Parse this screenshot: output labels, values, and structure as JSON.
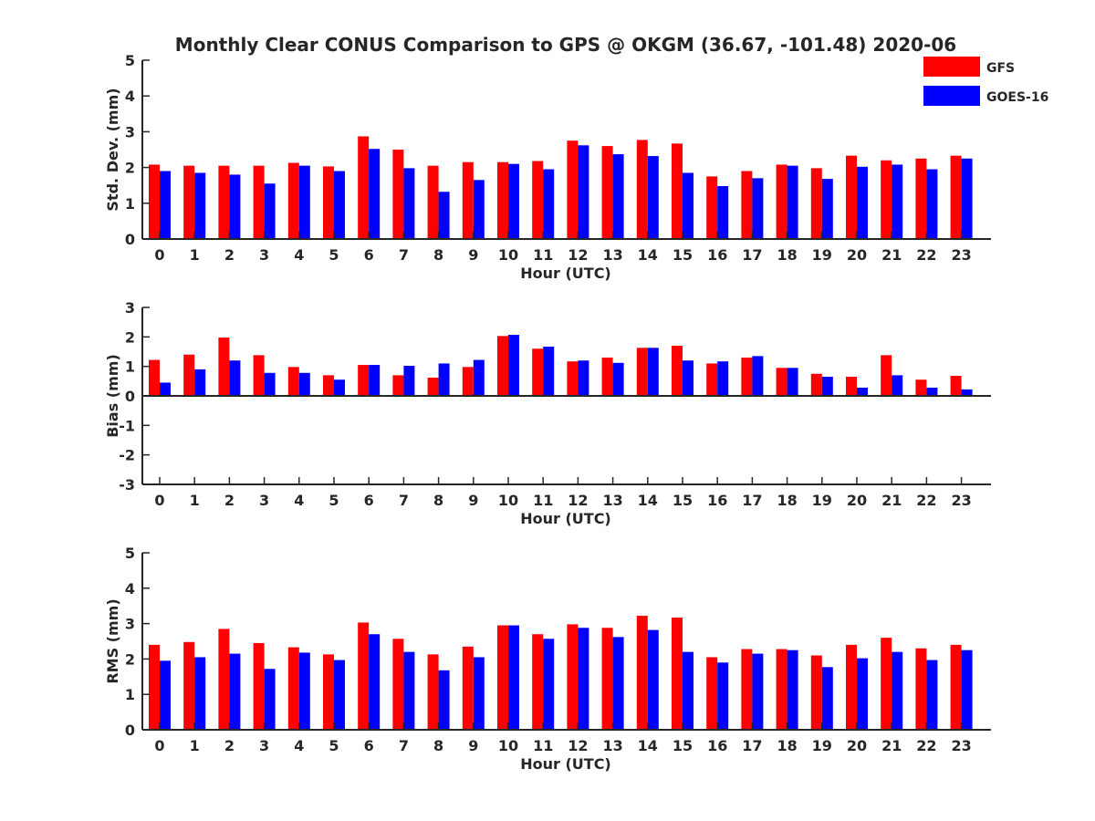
{
  "figure": {
    "title": "Monthly Clear CONUS Comparison to GPS @ OKGM (36.67, -101.48) 2020-06"
  },
  "legend": {
    "placement": "top-right",
    "items": [
      {
        "label": "GFS",
        "color": "#ff0000"
      },
      {
        "label": "GOES-16",
        "color": "#0000ff"
      }
    ]
  },
  "chart_data": [
    {
      "type": "bar",
      "ylabel": "Std. Dev. (mm)",
      "xlabel": "Hour (UTC)",
      "ylim": [
        0,
        5
      ],
      "yticks": [
        0,
        1,
        2,
        3,
        4,
        5
      ],
      "categories": [
        "0",
        "1",
        "2",
        "3",
        "4",
        "5",
        "6",
        "7",
        "8",
        "9",
        "10",
        "11",
        "12",
        "13",
        "14",
        "15",
        "16",
        "17",
        "18",
        "19",
        "20",
        "21",
        "22",
        "23"
      ],
      "series": [
        {
          "name": "GFS",
          "color": "#ff0000",
          "values": [
            2.08,
            2.05,
            2.05,
            2.05,
            2.13,
            2.03,
            2.87,
            2.5,
            2.05,
            2.15,
            2.15,
            2.18,
            2.75,
            2.6,
            2.77,
            2.67,
            1.75,
            1.9,
            2.08,
            1.98,
            2.33,
            2.2,
            2.25,
            2.33
          ]
        },
        {
          "name": "GOES-16",
          "color": "#0000ff",
          "values": [
            1.9,
            1.85,
            1.8,
            1.55,
            2.05,
            1.9,
            2.52,
            1.98,
            1.32,
            1.65,
            2.1,
            1.95,
            2.62,
            2.37,
            2.32,
            1.85,
            1.48,
            1.7,
            2.05,
            1.68,
            2.02,
            2.08,
            1.95,
            2.25
          ]
        }
      ]
    },
    {
      "type": "bar",
      "ylabel": "Bias (mm)",
      "xlabel": "Hour (UTC)",
      "ylim": [
        -3,
        3
      ],
      "yticks": [
        -3,
        -2,
        -1,
        0,
        1,
        2,
        3
      ],
      "categories": [
        "0",
        "1",
        "2",
        "3",
        "4",
        "5",
        "6",
        "7",
        "8",
        "9",
        "10",
        "11",
        "12",
        "13",
        "14",
        "15",
        "16",
        "17",
        "18",
        "19",
        "20",
        "21",
        "22",
        "23"
      ],
      "series": [
        {
          "name": "GFS",
          "color": "#ff0000",
          "values": [
            1.22,
            1.4,
            1.98,
            1.38,
            0.98,
            0.7,
            1.05,
            0.7,
            0.62,
            0.98,
            2.03,
            1.6,
            1.17,
            1.3,
            1.63,
            1.7,
            1.1,
            1.3,
            0.95,
            0.75,
            0.65,
            1.38,
            0.55,
            0.68
          ]
        },
        {
          "name": "GOES-16",
          "color": "#0000ff",
          "values": [
            0.45,
            0.9,
            1.2,
            0.78,
            0.78,
            0.55,
            1.05,
            1.02,
            1.1,
            1.22,
            2.07,
            1.67,
            1.2,
            1.12,
            1.63,
            1.2,
            1.17,
            1.35,
            0.95,
            0.65,
            0.28,
            0.7,
            0.28,
            0.22
          ]
        }
      ]
    },
    {
      "type": "bar",
      "ylabel": "RMS (mm)",
      "xlabel": "Hour (UTC)",
      "ylim": [
        0,
        5
      ],
      "yticks": [
        0,
        1,
        2,
        3,
        4,
        5
      ],
      "categories": [
        "0",
        "1",
        "2",
        "3",
        "4",
        "5",
        "6",
        "7",
        "8",
        "9",
        "10",
        "11",
        "12",
        "13",
        "14",
        "15",
        "16",
        "17",
        "18",
        "19",
        "20",
        "21",
        "22",
        "23"
      ],
      "series": [
        {
          "name": "GFS",
          "color": "#ff0000",
          "values": [
            2.4,
            2.48,
            2.85,
            2.45,
            2.33,
            2.13,
            3.03,
            2.57,
            2.13,
            2.35,
            2.95,
            2.7,
            2.98,
            2.88,
            3.22,
            3.17,
            2.05,
            2.28,
            2.28,
            2.1,
            2.4,
            2.6,
            2.3,
            2.4
          ]
        },
        {
          "name": "GOES-16",
          "color": "#0000ff",
          "values": [
            1.95,
            2.05,
            2.15,
            1.72,
            2.18,
            1.97,
            2.7,
            2.2,
            1.68,
            2.05,
            2.95,
            2.57,
            2.88,
            2.62,
            2.82,
            2.2,
            1.9,
            2.15,
            2.25,
            1.77,
            2.02,
            2.2,
            1.97,
            2.25
          ]
        }
      ]
    }
  ]
}
